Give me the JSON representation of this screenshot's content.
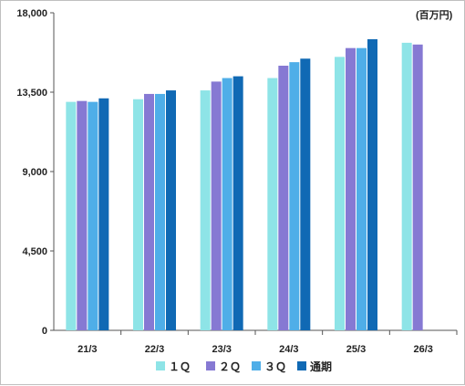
{
  "chart_data": {
    "type": "bar",
    "unit_label": "(百万円)",
    "categories": [
      "21/3",
      "22/3",
      "23/3",
      "24/3",
      "25/3",
      "26/3"
    ],
    "ylim": [
      0,
      18000
    ],
    "yticks": [
      "0",
      "4,500",
      "9,000",
      "13,500",
      "18,000"
    ],
    "ytick_values": [
      0,
      4500,
      9000,
      13500,
      18000
    ],
    "grid": false,
    "legend_position": "bottom",
    "series": [
      {
        "name": "１Ｑ",
        "color": "#8ee4e7",
        "values": [
          12950,
          13100,
          13600,
          14300,
          15500,
          16300
        ]
      },
      {
        "name": "２Ｑ",
        "color": "#8679d3",
        "values": [
          13000,
          13400,
          14100,
          15000,
          16000,
          16200
        ]
      },
      {
        "name": "３Ｑ",
        "color": "#4faee8",
        "values": [
          12950,
          13400,
          14300,
          15200,
          16000,
          null
        ]
      },
      {
        "name": "通期",
        "color": "#1069b4",
        "values": [
          13150,
          13600,
          14400,
          15400,
          16500,
          null
        ]
      }
    ]
  }
}
